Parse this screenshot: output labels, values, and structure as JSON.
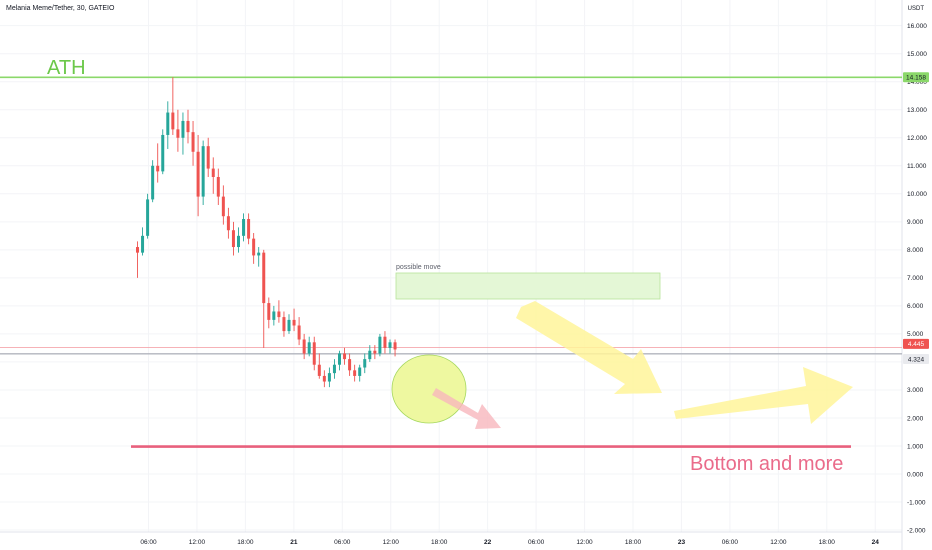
{
  "header": {
    "symbol_title": "Melania Meme/Tether, 30, GATEIO",
    "currency": "USDT"
  },
  "colors": {
    "up": "#26a69a",
    "down": "#ef5350",
    "ath_line": "#8bd86a",
    "bottom_line": "#e8607d",
    "zone_fill": "#e4f7d6",
    "zone_border": "#b7e39a",
    "arrow_yellow": "#fff59a",
    "ellipse_fill": "#eef8a0",
    "ellipse_border": "#a6d860",
    "arrow_red": "#f8b7bd"
  },
  "chart_data": {
    "type": "candlestick",
    "y_axis": {
      "ticks": [
        "16.000",
        "15.000",
        "14.000",
        "13.000",
        "12.000",
        "11.000",
        "10.000",
        "9.000",
        "8.000",
        "7.000",
        "6.000",
        "5.000",
        "4.000",
        "3.000",
        "2.000",
        "1.000",
        "0.000",
        "-1.000",
        "-2.000"
      ],
      "tick_values": [
        16,
        15,
        14,
        13,
        12,
        11,
        10,
        9,
        8,
        7,
        6,
        5,
        4,
        3,
        2,
        1,
        0,
        -1,
        -2
      ],
      "range": [
        -2,
        16.5
      ]
    },
    "x_axis": {
      "ticks": [
        "06:00",
        "12:00",
        "18:00",
        "21",
        "06:00",
        "12:00",
        "18:00",
        "22",
        "06:00",
        "12:00",
        "18:00",
        "23",
        "06:00",
        "12:00",
        "18:00",
        "24"
      ],
      "day_ticks": [
        "21",
        "22",
        "23",
        "24"
      ]
    },
    "price_labels": {
      "ath": "14.158",
      "current": "4.445",
      "secondary": "4.324"
    },
    "levels": {
      "ath": 14.158,
      "current": 4.445,
      "secondary": 4.324,
      "bottom": 0.98
    },
    "candles_ohlc": [
      [
        8.1,
        8.3,
        7.0,
        7.9
      ],
      [
        7.9,
        8.8,
        7.8,
        8.5
      ],
      [
        8.5,
        10.0,
        8.4,
        9.8
      ],
      [
        9.8,
        11.2,
        9.7,
        11.0
      ],
      [
        11.0,
        11.8,
        10.4,
        10.8
      ],
      [
        10.8,
        12.3,
        10.7,
        12.1
      ],
      [
        12.1,
        13.3,
        11.6,
        12.9
      ],
      [
        12.9,
        14.158,
        12.1,
        12.3
      ],
      [
        12.3,
        13.0,
        11.5,
        12.0
      ],
      [
        12.0,
        12.9,
        11.4,
        12.6
      ],
      [
        12.6,
        13.0,
        11.8,
        12.2
      ],
      [
        12.2,
        12.6,
        11.0,
        11.5
      ],
      [
        11.5,
        12.1,
        9.2,
        9.9
      ],
      [
        9.9,
        11.9,
        9.6,
        11.7
      ],
      [
        11.7,
        12.0,
        10.6,
        10.9
      ],
      [
        10.9,
        11.3,
        10.0,
        10.6
      ],
      [
        10.6,
        10.9,
        9.6,
        9.9
      ],
      [
        9.9,
        10.3,
        8.9,
        9.2
      ],
      [
        9.2,
        9.5,
        8.4,
        8.7
      ],
      [
        8.7,
        9.0,
        7.8,
        8.1
      ],
      [
        8.1,
        8.8,
        7.9,
        8.5
      ],
      [
        8.5,
        9.3,
        8.3,
        9.1
      ],
      [
        9.1,
        9.3,
        8.2,
        8.4
      ],
      [
        8.4,
        8.6,
        7.5,
        7.8
      ],
      [
        7.8,
        8.1,
        7.4,
        7.9
      ],
      [
        7.9,
        8.0,
        4.5,
        6.1
      ],
      [
        6.1,
        6.3,
        5.2,
        5.5
      ],
      [
        5.5,
        6.0,
        5.3,
        5.8
      ],
      [
        5.8,
        6.2,
        5.4,
        5.6
      ],
      [
        5.6,
        5.8,
        4.9,
        5.1
      ],
      [
        5.1,
        5.7,
        5.0,
        5.5
      ],
      [
        5.5,
        5.9,
        5.1,
        5.3
      ],
      [
        5.3,
        5.6,
        4.6,
        4.8
      ],
      [
        4.8,
        5.0,
        4.1,
        4.3
      ],
      [
        4.3,
        4.9,
        4.2,
        4.7
      ],
      [
        4.7,
        4.9,
        3.7,
        3.9
      ],
      [
        3.9,
        4.3,
        3.4,
        3.5
      ],
      [
        3.5,
        3.7,
        3.1,
        3.3
      ],
      [
        3.3,
        3.8,
        3.1,
        3.6
      ],
      [
        3.6,
        4.1,
        3.4,
        3.9
      ],
      [
        3.9,
        4.4,
        3.7,
        4.3
      ],
      [
        4.3,
        4.5,
        3.9,
        4.1
      ],
      [
        4.1,
        4.3,
        3.5,
        3.7
      ],
      [
        3.7,
        3.9,
        3.3,
        3.5
      ],
      [
        3.5,
        3.9,
        3.3,
        3.8
      ],
      [
        3.8,
        4.3,
        3.6,
        4.1
      ],
      [
        4.1,
        4.6,
        4.0,
        4.4
      ],
      [
        4.4,
        4.6,
        4.1,
        4.3
      ],
      [
        4.3,
        5.0,
        4.2,
        4.9
      ],
      [
        4.9,
        5.1,
        4.3,
        4.5
      ],
      [
        4.5,
        4.8,
        4.3,
        4.7
      ],
      [
        4.7,
        4.8,
        4.2,
        4.445
      ]
    ],
    "annotations": {
      "ath_text": "ATH",
      "zone_text": "possible move",
      "bottom_text": "Bottom and more"
    },
    "grid": true
  }
}
